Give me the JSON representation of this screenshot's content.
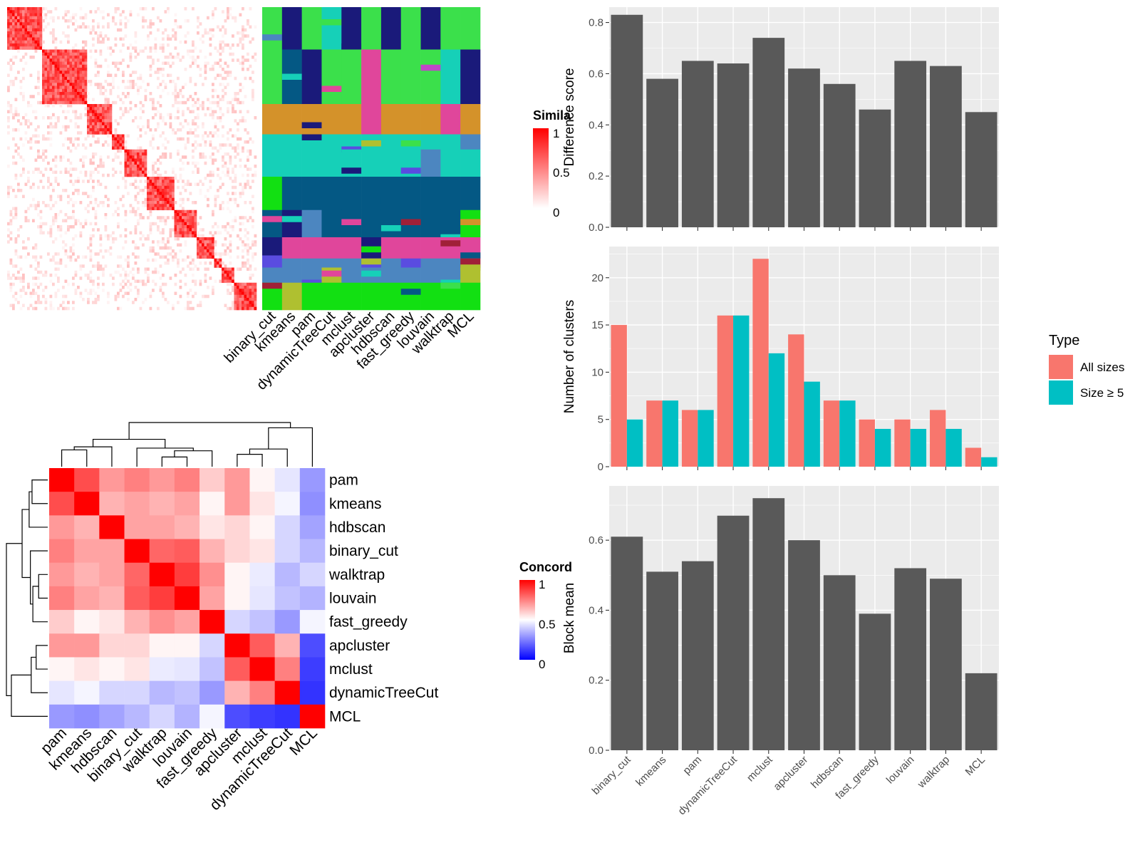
{
  "methods_order": [
    "binary_cut",
    "kmeans",
    "pam",
    "dynamicTreeCut",
    "mclust",
    "apcluster",
    "hdbscan",
    "fast_greedy",
    "louvain",
    "walktrap",
    "MCL"
  ],
  "colors": {
    "bar_gray": "#595959",
    "panel_bg": "#EBEBEB",
    "grid": "#FFFFFF",
    "all_sizes": "#F8766D",
    "size_ge5": "#00BFC4",
    "heat_high": "#FF0000",
    "heat_mid": "#FFFFFF",
    "heat_low": "#0000FF"
  },
  "similarity_heatmap": {
    "legend_title": "Simila",
    "legend_ticks": [
      "1",
      "0.5",
      "0"
    ],
    "column_labels": [
      "binary_cut",
      "kmeans",
      "pam",
      "dynamicTreeCut",
      "mclust",
      "apcluster",
      "hdbscan",
      "fast_greedy",
      "louvain",
      "walktrap",
      "MCL"
    ]
  },
  "concordance_heatmap": {
    "legend_title": "Concord",
    "legend_ticks": [
      "1",
      "0.5",
      "0"
    ],
    "labels": [
      "pam",
      "kmeans",
      "hdbscan",
      "binary_cut",
      "walktrap",
      "louvain",
      "fast_greedy",
      "apcluster",
      "mclust",
      "dynamicTreeCut",
      "MCL"
    ],
    "matrix": [
      [
        1.0,
        0.85,
        0.7,
        0.75,
        0.7,
        0.75,
        0.6,
        0.7,
        0.52,
        0.45,
        0.3
      ],
      [
        0.85,
        1.0,
        0.65,
        0.68,
        0.65,
        0.68,
        0.52,
        0.7,
        0.55,
        0.48,
        0.28
      ],
      [
        0.7,
        0.65,
        1.0,
        0.68,
        0.68,
        0.65,
        0.55,
        0.58,
        0.52,
        0.42,
        0.32
      ],
      [
        0.75,
        0.68,
        0.68,
        1.0,
        0.8,
        0.82,
        0.65,
        0.58,
        0.55,
        0.42,
        0.36
      ],
      [
        0.7,
        0.65,
        0.68,
        0.8,
        1.0,
        0.88,
        0.72,
        0.52,
        0.46,
        0.36,
        0.42
      ],
      [
        0.75,
        0.68,
        0.65,
        0.82,
        0.88,
        1.0,
        0.68,
        0.52,
        0.45,
        0.38,
        0.35
      ],
      [
        0.6,
        0.52,
        0.55,
        0.65,
        0.72,
        0.68,
        1.0,
        0.42,
        0.38,
        0.3,
        0.48
      ],
      [
        0.7,
        0.7,
        0.58,
        0.58,
        0.52,
        0.52,
        0.42,
        1.0,
        0.82,
        0.65,
        0.15
      ],
      [
        0.52,
        0.55,
        0.52,
        0.55,
        0.46,
        0.45,
        0.38,
        0.82,
        1.0,
        0.75,
        0.12
      ],
      [
        0.45,
        0.48,
        0.42,
        0.42,
        0.36,
        0.38,
        0.3,
        0.65,
        0.75,
        1.0,
        0.1
      ],
      [
        0.3,
        0.28,
        0.32,
        0.36,
        0.42,
        0.35,
        0.48,
        0.15,
        0.12,
        0.1,
        1.0
      ]
    ]
  },
  "chart_data": [
    {
      "type": "bar",
      "ylabel": "Difference score",
      "categories": [
        "binary_cut",
        "kmeans",
        "pam",
        "dynamicTreeCut",
        "mclust",
        "apcluster",
        "hdbscan",
        "fast_greedy",
        "louvain",
        "walktrap",
        "MCL"
      ],
      "values": [
        0.83,
        0.58,
        0.65,
        0.64,
        0.74,
        0.62,
        0.56,
        0.46,
        0.65,
        0.63,
        0.45
      ],
      "ylim": [
        0,
        0.86
      ],
      "yticks": [
        "0.0",
        "0.2",
        "0.4",
        "0.6",
        "0.8"
      ],
      "grid": true
    },
    {
      "type": "bar",
      "ylabel": "Number of clusters",
      "categories": [
        "binary_cut",
        "kmeans",
        "pam",
        "dynamicTreeCut",
        "mclust",
        "apcluster",
        "hdbscan",
        "fast_greedy",
        "louvain",
        "walktrap",
        "MCL"
      ],
      "legend": {
        "title": "Type",
        "position": "right"
      },
      "series": [
        {
          "name": "All sizes",
          "values": [
            15,
            7,
            6,
            16,
            22,
            14,
            7,
            5,
            5,
            6,
            2
          ]
        },
        {
          "name": "Size ≥ 5",
          "values": [
            5,
            7,
            6,
            16,
            12,
            9,
            7,
            4,
            4,
            4,
            1
          ]
        }
      ],
      "ylim": [
        0,
        23.3
      ],
      "yticks": [
        "0",
        "5",
        "10",
        "15",
        "20"
      ],
      "grid": true
    },
    {
      "type": "bar",
      "ylabel": "Block mean",
      "categories": [
        "binary_cut",
        "kmeans",
        "pam",
        "dynamicTreeCut",
        "mclust",
        "apcluster",
        "hdbscan",
        "fast_greedy",
        "louvain",
        "walktrap",
        "MCL"
      ],
      "values": [
        0.61,
        0.51,
        0.54,
        0.67,
        0.72,
        0.6,
        0.5,
        0.39,
        0.52,
        0.49,
        0.22
      ],
      "ylim": [
        0,
        0.755
      ],
      "yticks": [
        "0.0",
        "0.2",
        "0.4",
        "0.6"
      ],
      "grid": true
    }
  ]
}
